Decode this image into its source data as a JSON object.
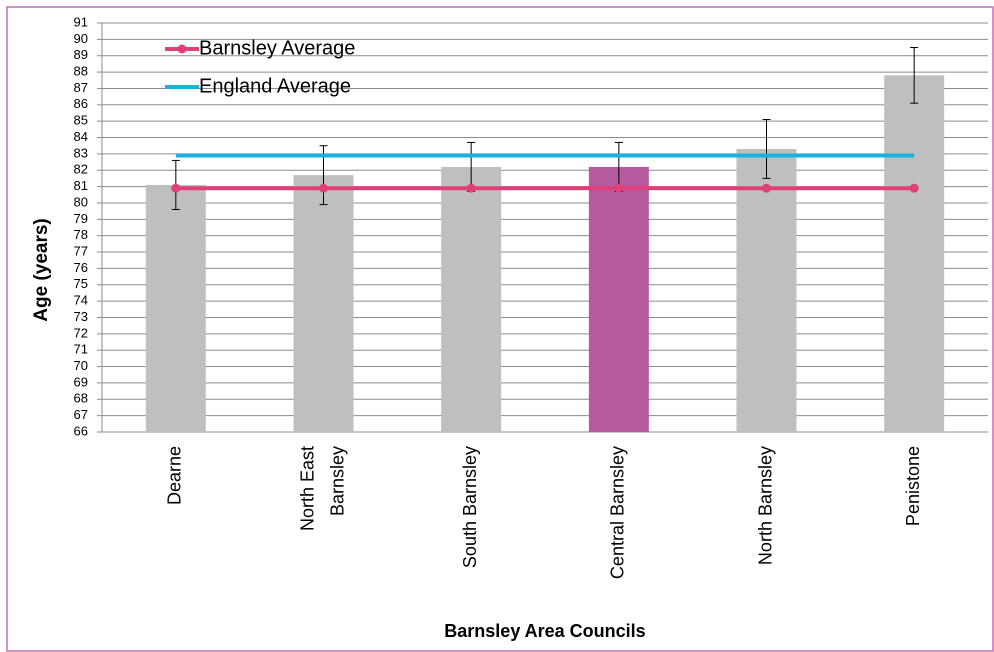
{
  "chart_data": {
    "type": "bar",
    "categories": [
      "Dearne",
      "North East Barnsley",
      "South Barnsley",
      "Central Barnsley",
      "North Barnsley",
      "Penistone"
    ],
    "values": [
      81.1,
      81.7,
      82.2,
      82.2,
      83.3,
      87.8
    ],
    "errors": [
      1.5,
      1.8,
      1.5,
      1.5,
      1.8,
      1.7
    ],
    "bar_colors": [
      "#bfbfbf",
      "#bfbfbf",
      "#bfbfbf",
      "#b65aa0",
      "#bfbfbf",
      "#bfbfbf"
    ],
    "series": [
      {
        "name": "Barnsley Average",
        "color": "#e0407a",
        "values": [
          80.9,
          80.9,
          80.9,
          80.9,
          80.9,
          80.9
        ],
        "markers": true
      },
      {
        "name": "England Average",
        "color": "#1ab0e0",
        "values": [
          82.9,
          82.9,
          82.9,
          82.9,
          82.9,
          82.9
        ],
        "markers": false
      }
    ],
    "ylabel": "Age (years)",
    "xlabel": "Barnsley Area Councils",
    "ylim": [
      66,
      91
    ],
    "yticks": [
      66,
      67,
      68,
      69,
      70,
      71,
      72,
      73,
      74,
      75,
      76,
      77,
      78,
      79,
      80,
      81,
      82,
      83,
      84,
      85,
      86,
      87,
      88,
      89,
      90,
      91
    ],
    "grid": true,
    "legend": "upper left"
  }
}
